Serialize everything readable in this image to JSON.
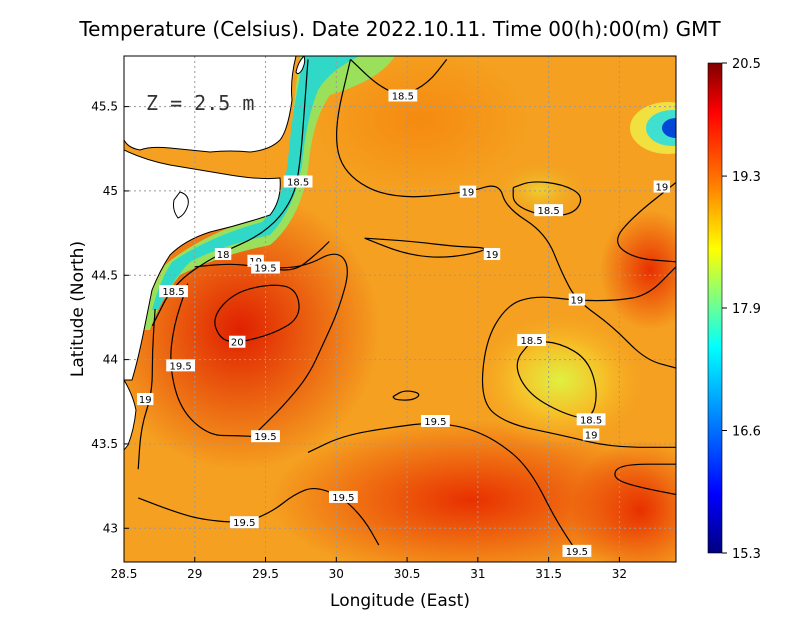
{
  "chart_data": {
    "type": "heatmap",
    "title": "Temperature (Celsius). Date 2022.10.11. Time 00(h):00(m) GMT",
    "xlabel": "Longitude (East)",
    "ylabel": "Latitude (North)",
    "xlim": [
      28.5,
      32.4
    ],
    "ylim": [
      42.8,
      45.8
    ],
    "x_ticks": [
      28.5,
      29,
      29.5,
      30,
      30.5,
      31,
      31.5,
      32
    ],
    "y_ticks": [
      43,
      43.5,
      44,
      44.5,
      45,
      45.5
    ],
    "x_tick_labels": [
      "28.5",
      "29",
      "29.5",
      "30",
      "30.5",
      "31",
      "31.5",
      "32"
    ],
    "y_tick_labels": [
      "43",
      "43.5",
      "44",
      "44.5",
      "45",
      "45.5"
    ],
    "grid": true,
    "depth_label": "Z = 2.5 m",
    "colorbar": {
      "min": 15.3,
      "max": 20.5,
      "tick_values": [
        20.5,
        19.3,
        17.9,
        16.6,
        15.3
      ],
      "tick_labels": [
        "20.5",
        "19.3",
        "17.9",
        "16.6",
        "15.3"
      ],
      "colors": [
        "#00007f",
        "#0000ff",
        "#0080ff",
        "#00ffff",
        "#80ff80",
        "#ffff00",
        "#ff8000",
        "#ff0000",
        "#7f0000"
      ]
    },
    "contour_labels": [
      {
        "text": "18.5",
        "lon": 30.47,
        "lat": 45.56
      },
      {
        "text": "18.5",
        "lon": 29.73,
        "lat": 45.05
      },
      {
        "text": "19",
        "lon": 30.93,
        "lat": 44.99
      },
      {
        "text": "18.5",
        "lon": 31.5,
        "lat": 44.88
      },
      {
        "text": "19",
        "lon": 32.3,
        "lat": 45.02
      },
      {
        "text": "18",
        "lon": 29.2,
        "lat": 44.62
      },
      {
        "text": "19",
        "lon": 29.43,
        "lat": 44.58
      },
      {
        "text": "19.5",
        "lon": 29.5,
        "lat": 44.54
      },
      {
        "text": "19",
        "lon": 31.1,
        "lat": 44.62
      },
      {
        "text": "18.5",
        "lon": 28.85,
        "lat": 44.4
      },
      {
        "text": "20",
        "lon": 29.3,
        "lat": 44.1
      },
      {
        "text": "19",
        "lon": 31.7,
        "lat": 44.35
      },
      {
        "text": "18.5",
        "lon": 31.38,
        "lat": 44.11
      },
      {
        "text": "19.5",
        "lon": 28.9,
        "lat": 43.96
      },
      {
        "text": "19",
        "lon": 28.65,
        "lat": 43.76
      },
      {
        "text": "19.5",
        "lon": 29.5,
        "lat": 43.54
      },
      {
        "text": "19.5",
        "lon": 30.7,
        "lat": 43.63
      },
      {
        "text": "18.5",
        "lon": 31.8,
        "lat": 43.64
      },
      {
        "text": "19",
        "lon": 31.8,
        "lat": 43.55
      },
      {
        "text": "19.5",
        "lon": 30.05,
        "lat": 43.18
      },
      {
        "text": "19.5",
        "lon": 29.35,
        "lat": 43.03
      },
      {
        "text": "19.5",
        "lon": 31.7,
        "lat": 42.86
      }
    ],
    "contours": [
      {
        "level": 18.5,
        "points": [
          [
            29.8,
            45.78
          ],
          [
            29.78,
            45.55
          ],
          [
            29.75,
            45.2
          ],
          [
            29.7,
            44.95
          ],
          [
            29.5,
            44.75
          ],
          [
            29.15,
            44.62
          ],
          [
            28.85,
            44.45
          ],
          [
            28.7,
            44.2
          ]
        ]
      },
      {
        "level": 18.5,
        "points": [
          [
            30.1,
            45.78
          ],
          [
            30.3,
            45.62
          ],
          [
            30.47,
            45.56
          ],
          [
            30.65,
            45.64
          ],
          [
            30.78,
            45.78
          ]
        ]
      },
      {
        "level": 18.5,
        "points": [
          [
            31.25,
            45.02
          ],
          [
            31.38,
            45.06
          ],
          [
            31.6,
            45.04
          ],
          [
            31.75,
            44.97
          ],
          [
            31.68,
            44.86
          ],
          [
            31.45,
            44.85
          ],
          [
            31.25,
            44.92
          ],
          [
            31.25,
            45.02
          ]
        ]
      },
      {
        "level": 18.5,
        "points": [
          [
            31.38,
            44.11
          ],
          [
            31.58,
            44.1
          ],
          [
            31.78,
            44.0
          ],
          [
            31.85,
            43.8
          ],
          [
            31.8,
            43.64
          ],
          [
            31.6,
            43.68
          ],
          [
            31.35,
            43.8
          ],
          [
            31.25,
            43.98
          ],
          [
            31.38,
            44.11
          ]
        ]
      },
      {
        "level": 19,
        "points": [
          [
            30.1,
            45.78
          ],
          [
            29.98,
            45.35
          ],
          [
            30.05,
            45.1
          ],
          [
            30.38,
            44.95
          ],
          [
            30.93,
            44.99
          ],
          [
            31.15,
            45.05
          ],
          [
            31.2,
            44.9
          ],
          [
            31.48,
            44.75
          ],
          [
            31.6,
            44.5
          ],
          [
            31.7,
            44.35
          ],
          [
            31.95,
            44.2
          ],
          [
            32.18,
            44.0
          ],
          [
            32.4,
            43.95
          ]
        ]
      },
      {
        "level": 19,
        "points": [
          [
            32.4,
            44.55
          ],
          [
            32.2,
            44.38
          ],
          [
            31.98,
            44.35
          ],
          [
            31.7,
            44.35
          ],
          [
            31.4,
            44.38
          ],
          [
            31.2,
            44.32
          ],
          [
            31.05,
            44.1
          ],
          [
            31.02,
            43.75
          ],
          [
            31.2,
            43.62
          ],
          [
            31.6,
            43.55
          ],
          [
            31.95,
            43.48
          ],
          [
            32.4,
            43.48
          ]
        ]
      },
      {
        "level": 19,
        "points": [
          [
            32.4,
            45.05
          ],
          [
            32.1,
            44.85
          ],
          [
            31.95,
            44.7
          ],
          [
            32.1,
            44.6
          ],
          [
            32.4,
            44.58
          ]
        ]
      },
      {
        "level": 19,
        "points": [
          [
            30.2,
            44.72
          ],
          [
            30.55,
            44.7
          ],
          [
            30.85,
            44.67
          ],
          [
            31.12,
            44.66
          ],
          [
            30.8,
            44.6
          ],
          [
            30.5,
            44.62
          ],
          [
            30.2,
            44.72
          ]
        ]
      },
      {
        "level": 19,
        "points": [
          [
            29.0,
            44.55
          ],
          [
            29.25,
            44.57
          ],
          [
            29.45,
            44.55
          ],
          [
            29.7,
            44.52
          ],
          [
            29.85,
            44.62
          ],
          [
            29.95,
            44.7
          ]
        ]
      },
      {
        "level": 19,
        "points": [
          [
            28.72,
            44.3
          ],
          [
            28.7,
            44.05
          ],
          [
            28.7,
            43.8
          ],
          [
            28.62,
            43.6
          ],
          [
            28.6,
            43.35
          ]
        ]
      },
      {
        "level": 19.5,
        "points": [
          [
            29.5,
            44.54
          ],
          [
            29.78,
            44.55
          ],
          [
            30.0,
            44.65
          ],
          [
            30.1,
            44.55
          ],
          [
            30.02,
            44.3
          ],
          [
            29.9,
            44.08
          ],
          [
            29.8,
            43.9
          ],
          [
            29.62,
            43.72
          ],
          [
            29.45,
            43.58
          ]
        ]
      },
      {
        "level": 19.5,
        "points": [
          [
            28.95,
            44.45
          ],
          [
            28.85,
            44.2
          ],
          [
            28.82,
            43.96
          ],
          [
            28.9,
            43.7
          ],
          [
            29.1,
            43.55
          ],
          [
            29.3,
            43.55
          ],
          [
            29.5,
            43.54
          ]
        ]
      },
      {
        "level": 19.5,
        "points": [
          [
            29.8,
            43.45
          ],
          [
            30.05,
            43.55
          ],
          [
            30.4,
            43.6
          ],
          [
            30.7,
            43.63
          ],
          [
            31.0,
            43.58
          ],
          [
            31.25,
            43.45
          ],
          [
            31.4,
            43.3
          ],
          [
            31.55,
            43.05
          ],
          [
            31.7,
            42.86
          ]
        ]
      },
      {
        "level": 19.5,
        "points": [
          [
            32.4,
            43.2
          ],
          [
            32.1,
            43.25
          ],
          [
            31.95,
            43.3
          ],
          [
            32.0,
            43.38
          ],
          [
            32.4,
            43.38
          ]
        ]
      },
      {
        "level": 19.5,
        "points": [
          [
            28.6,
            43.18
          ],
          [
            28.85,
            43.1
          ],
          [
            29.05,
            43.05
          ],
          [
            29.35,
            43.03
          ],
          [
            29.55,
            43.1
          ],
          [
            29.7,
            43.2
          ],
          [
            29.85,
            43.25
          ],
          [
            30.05,
            43.18
          ],
          [
            30.2,
            43.05
          ],
          [
            30.3,
            42.9
          ]
        ]
      },
      {
        "level": 20,
        "points": [
          [
            29.3,
            44.1
          ],
          [
            29.55,
            44.15
          ],
          [
            29.75,
            44.25
          ],
          [
            29.72,
            44.42
          ],
          [
            29.55,
            44.45
          ],
          [
            29.28,
            44.4
          ],
          [
            29.12,
            44.25
          ],
          [
            29.18,
            44.12
          ],
          [
            29.3,
            44.1
          ]
        ]
      },
      {
        "level": 19.5,
        "points": [
          [
            30.4,
            43.78
          ],
          [
            30.48,
            43.82
          ],
          [
            30.6,
            43.8
          ],
          [
            30.55,
            43.76
          ],
          [
            30.42,
            43.76
          ],
          [
            30.4,
            43.78
          ]
        ]
      }
    ]
  }
}
